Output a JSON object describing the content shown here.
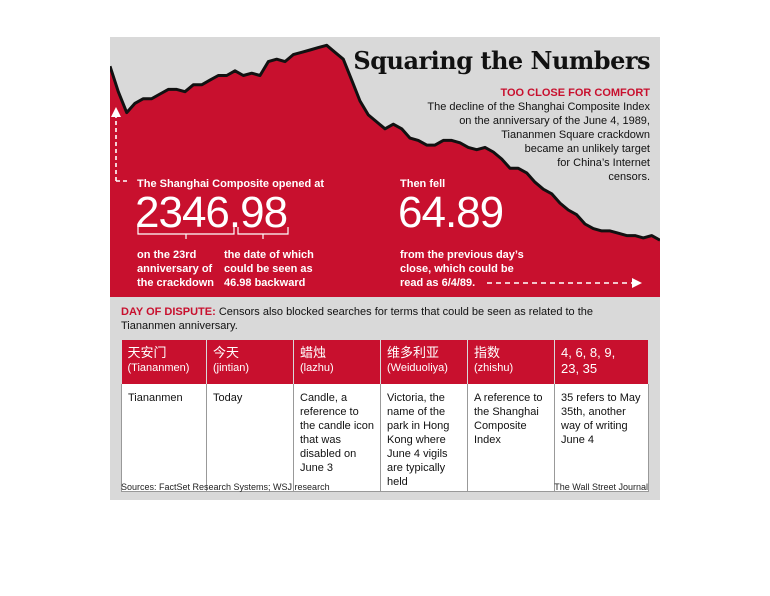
{
  "title": "Squaring the Numbers",
  "subhead": "TOO CLOSE FOR COMFORT",
  "dek": [
    "The decline of the Shanghai Composite Index",
    "on the anniversary of the June 4, 1989,",
    "Tiananmen Square crackdown",
    "became an unlikely target",
    "for China’s Internet",
    "censors."
  ],
  "colors": {
    "accent": "#c8102e",
    "panel": "#d9d9d9",
    "line": "#111111"
  },
  "left_callout": {
    "intro": "The Shanghai Composite opened at",
    "number": "2346.98",
    "note_a": [
      "on the 23rd",
      "anniversary of",
      "the crackdown"
    ],
    "note_b": [
      "the date of which",
      "could be seen as",
      "46.98 backward"
    ]
  },
  "right_callout": {
    "intro": "Then fell",
    "number": "64.89",
    "note": [
      "from the previous day’s",
      "close, which could be",
      "read as 6/4/89."
    ]
  },
  "chart_data": {
    "type": "area",
    "title": "",
    "xlabel": "",
    "ylabel": "",
    "ylim": [
      0,
      100
    ],
    "grid": false,
    "series": [
      {
        "values": [
          90,
          79,
          70,
          74,
          76,
          76,
          78,
          80,
          80,
          79,
          82,
          82,
          84,
          86,
          86,
          88,
          86,
          87,
          86,
          92,
          93,
          92,
          95,
          96,
          97,
          98,
          99,
          96,
          93,
          84,
          75,
          69,
          66,
          63,
          65,
          63,
          59,
          58,
          56,
          56,
          58,
          58,
          57,
          55,
          54,
          55,
          53,
          50,
          46,
          46,
          44,
          40,
          37,
          35,
          31,
          28,
          26,
          22,
          20,
          19,
          19,
          18,
          17,
          17,
          16,
          17,
          15
        ]
      }
    ]
  },
  "dispute": {
    "label": "DAY OF DISPUTE:",
    "text": "Censors also blocked searches for terms that could be seen as related to the Tiananmen anniversary."
  },
  "table": {
    "headers": [
      {
        "zh": "天安门",
        "py": "(Tiananmen)"
      },
      {
        "zh": "今天",
        "py": "(jintian)"
      },
      {
        "zh": "蜡烛",
        "py": "(lazhu)"
      },
      {
        "zh": "维多利亚",
        "py": "(Weiduoliya)"
      },
      {
        "zh": "指数",
        "py": "(zhishu)"
      },
      {
        "zh": "4, 6, 8, 9,",
        "py": "23, 35"
      }
    ],
    "cells": [
      "Tiananmen",
      "Today",
      "Candle, a reference to the candle icon that was disabled on June 3",
      "Victoria, the name of the park in Hong Kong where June 4 vigils are typically held",
      "A reference to the Shanghai Composite Index",
      "35 refers to May 35th, another way of writing June 4"
    ]
  },
  "source": "Sources: FactSet Research Systems; WSJ research",
  "credit": "The Wall Street Journal"
}
